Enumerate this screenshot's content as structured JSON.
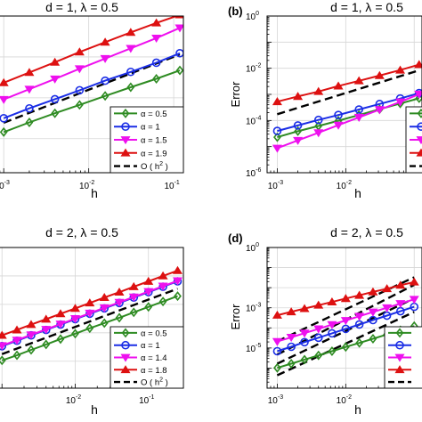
{
  "chart_data": [
    {
      "panel_label": "",
      "type": "line",
      "title": "d = 1, λ = 0.5",
      "xlabel": "h",
      "ylabel": "",
      "xscale": "log",
      "yscale": "log",
      "xlim": [
        0.00071,
        0.13
      ],
      "ylim": [
        1.47e-06,
        0.01
      ],
      "xticks": [
        {
          "value": 0.001,
          "base": "10",
          "exp": "-3"
        },
        {
          "value": 0.01,
          "base": "10",
          "exp": "-2"
        },
        {
          "value": 0.1,
          "base": "10",
          "exp": "-1"
        }
      ],
      "yticks": [],
      "grid": true,
      "legend_position": "bottom-right",
      "series": [
        {
          "name": "α = 0.5",
          "color": "#2e8b22",
          "marker": "diamond",
          "linestyle": "solid",
          "x": [
            0.001,
            0.002,
            0.004,
            0.0078,
            0.0156,
            0.0312,
            0.0625,
            0.118
          ],
          "y": [
            1.45e-05,
            2.5e-05,
            4.18e-05,
            6.7e-05,
            0.000111,
            0.000181,
            0.000291,
            0.000468
          ]
        },
        {
          "name": "α = 1",
          "color": "#1b2ee6",
          "marker": "circle",
          "linestyle": "solid",
          "x": [
            0.001,
            0.002,
            0.004,
            0.0078,
            0.0156,
            0.0312,
            0.0625,
            0.118
          ],
          "y": [
            3.16e-05,
            5.51e-05,
            9.25e-05,
            0.000153,
            0.000262,
            0.00043,
            0.000721,
            0.00123
          ]
        },
        {
          "name": "α = 1.5",
          "color": "#ee10ee",
          "marker": "triangle-down",
          "linestyle": "solid",
          "x": [
            0.001,
            0.002,
            0.004,
            0.0078,
            0.0156,
            0.0312,
            0.0625,
            0.118
          ],
          "y": [
            9.12e-05,
            0.000162,
            0.000288,
            0.000513,
            0.000912,
            0.00162,
            0.00288,
            0.00513
          ]
        },
        {
          "name": "α = 1.9",
          "color": "#dd1111",
          "marker": "triangle-up",
          "linestyle": "solid",
          "x": [
            0.001,
            0.002,
            0.004,
            0.0078,
            0.0156,
            0.0312,
            0.0625,
            0.118
          ],
          "y": [
            0.000234,
            0.000417,
            0.000741,
            0.00132,
            0.00229,
            0.00398,
            0.00676,
            0.0107
          ]
        },
        {
          "name": "O ( h",
          "name_sup": "2",
          "name_suffix": " )",
          "color": "#000000",
          "marker": "none",
          "linestyle": "dashed",
          "x": [
            0.001,
            0.118
          ],
          "y": [
            2.45e-05,
            0.00115
          ]
        }
      ]
    },
    {
      "panel_label": "(b)",
      "type": "line",
      "title": "d = 1, λ = 0.5",
      "xlabel": "h",
      "ylabel": "Error",
      "xscale": "log",
      "yscale": "log",
      "xlim": [
        0.00071,
        0.13
      ],
      "ylim": [
        1e-06,
        1
      ],
      "xticks": [
        {
          "value": 0.001,
          "base": "10",
          "exp": "-3"
        },
        {
          "value": 0.01,
          "base": "10",
          "exp": "-2"
        }
      ],
      "yticks": [
        {
          "value": 1,
          "base": "10",
          "exp": "0"
        },
        {
          "value": 0.01,
          "base": "10",
          "exp": "-2"
        },
        {
          "value": 0.0001,
          "base": "10",
          "exp": "-4"
        },
        {
          "value": 1e-06,
          "base": "10",
          "exp": "-6"
        }
      ],
      "grid": true,
      "legend_position": "bottom-right",
      "series": [
        {
          "name": "",
          "color": "#2e8b22",
          "marker": "diamond",
          "linestyle": "solid",
          "x": [
            0.001,
            0.002,
            0.004,
            0.0078,
            0.0156,
            0.0312,
            0.0625,
            0.118
          ],
          "y": [
            2.29e-05,
            3.89e-05,
            6.17e-05,
            9.77e-05,
            0.000162,
            0.000269,
            0.000447,
            0.000708
          ]
        },
        {
          "name": "",
          "color": "#1b2ee6",
          "marker": "circle",
          "linestyle": "solid",
          "x": [
            0.001,
            0.002,
            0.004,
            0.0078,
            0.0156,
            0.0312,
            0.0625,
            0.118
          ],
          "y": [
            3.98e-05,
            6.46e-05,
            0.000105,
            0.000162,
            0.000263,
            0.000427,
            0.000692,
            0.00112
          ]
        },
        {
          "name": "",
          "color": "#ee10ee",
          "marker": "triangle-down",
          "linestyle": "solid",
          "x": [
            0.001,
            0.002,
            0.004,
            0.0078,
            0.0156,
            0.0312,
            0.0625,
            0.118
          ],
          "y": [
            8.7e-06,
            1.73e-05,
            3.39e-05,
            6.61e-05,
            0.000132,
            0.00026,
            0.000513,
            0.00102
          ]
        },
        {
          "name": "",
          "color": "#dd1111",
          "marker": "triangle-up",
          "linestyle": "solid",
          "x": [
            0.001,
            0.002,
            0.004,
            0.0078,
            0.0156,
            0.0312,
            0.0625,
            0.118
          ],
          "y": [
            0.000525,
            0.000832,
            0.00129,
            0.00209,
            0.00331,
            0.00525,
            0.00851,
            0.0138
          ]
        },
        {
          "name": "",
          "color": "#000000",
          "marker": "none",
          "linestyle": "dashed",
          "x": [
            0.001,
            0.118
          ],
          "y": [
            0.000174,
            0.00832
          ]
        }
      ]
    },
    {
      "panel_label": "",
      "type": "line",
      "title": "d = 2, λ = 0.5",
      "xlabel": "h",
      "ylabel": "",
      "xscale": "log",
      "yscale": "log",
      "xlim": [
        0.00071,
        0.3
      ],
      "ylim": [
        1.13e-08,
        0.001
      ],
      "xticks": [
        {
          "value": 0.01,
          "base": "10",
          "exp": "-2"
        },
        {
          "value": 0.1,
          "base": "10",
          "exp": "-1"
        }
      ],
      "yticks": [],
      "grid": true,
      "legend_position": "bottom-right",
      "series": [
        {
          "name": "α = 0.5",
          "color": "#2e8b22",
          "marker": "diamond",
          "linestyle": "solid",
          "x": [
            0.001,
            0.0016,
            0.0025,
            0.004,
            0.0063,
            0.01,
            0.0158,
            0.025,
            0.04,
            0.063,
            0.1,
            0.158,
            0.25
          ],
          "y": [
            1.07e-07,
            1.62e-07,
            2.51e-07,
            3.89e-07,
            6.03e-07,
            9.33e-07,
            1.45e-06,
            2.19e-06,
            3.39e-06,
            5.25e-06,
            8.13e-06,
            1.26e-05,
            1.95e-05
          ]
        },
        {
          "name": "α = 1",
          "color": "#1b2ee6",
          "marker": "circle",
          "linestyle": "solid",
          "x": [
            0.001,
            0.0016,
            0.0025,
            0.004,
            0.0063,
            0.01,
            0.0158,
            0.025,
            0.04,
            0.063,
            0.1,
            0.158,
            0.25
          ],
          "y": [
            3.39e-07,
            5.25e-07,
            8.13e-07,
            1.26e-06,
            1.95e-06,
            3.02e-06,
            4.68e-06,
            7.24e-06,
            1.12e-05,
            1.74e-05,
            2.69e-05,
            4.17e-05,
            6.46e-05
          ]
        },
        {
          "name": "α = 1.4",
          "color": "#ee10ee",
          "marker": "triangle-down",
          "linestyle": "solid",
          "x": [
            0.001,
            0.0016,
            0.0025,
            0.004,
            0.0063,
            0.01,
            0.0158,
            0.025,
            0.04,
            0.063,
            0.1,
            0.158,
            0.25
          ],
          "y": [
            3.55e-07,
            5.5e-07,
            8.51e-07,
            1.32e-06,
            2.04e-06,
            3.16e-06,
            4.9e-06,
            7.59e-06,
            1.18e-05,
            1.82e-05,
            2.82e-05,
            4.37e-05,
            6.76e-05
          ]
        },
        {
          "name": "α = 1.8",
          "color": "#dd1111",
          "marker": "triangle-up",
          "linestyle": "solid",
          "x": [
            0.001,
            0.0016,
            0.0025,
            0.004,
            0.0063,
            0.01,
            0.0158,
            0.025,
            0.04,
            0.063,
            0.1,
            0.158,
            0.25
          ],
          "y": [
            8.13e-07,
            1.26e-06,
            1.95e-06,
            3.02e-06,
            4.68e-06,
            7.24e-06,
            1.12e-05,
            1.74e-05,
            2.69e-05,
            4.17e-05,
            6.46e-05,
            0.0001,
            0.000155
          ]
        },
        {
          "name": "O ( h",
          "name_sup": "2",
          "name_suffix": " )",
          "color": "#000000",
          "marker": "none",
          "linestyle": "dashed",
          "x": [
            0.001,
            0.25
          ],
          "y": [
            1.78e-07,
            3.55e-05
          ]
        }
      ]
    },
    {
      "panel_label": "(d)",
      "type": "line",
      "title": "d = 2, λ = 0.5",
      "xlabel": "h",
      "ylabel": "Error",
      "xscale": "log",
      "yscale": "log",
      "xlim": [
        0.00071,
        0.13
      ],
      "ylim": [
        1e-07,
        1
      ],
      "xticks": [
        {
          "value": 0.001,
          "base": "10",
          "exp": "-3"
        },
        {
          "value": 0.01,
          "base": "10",
          "exp": "-2"
        }
      ],
      "yticks": [
        {
          "value": 1,
          "base": "10",
          "exp": "0"
        },
        {
          "value": 0.001,
          "base": "10",
          "exp": "-3"
        },
        {
          "value": 1e-05,
          "base": "10",
          "exp": "-5"
        }
      ],
      "grid": true,
      "legend_position": "bottom-right",
      "series": [
        {
          "name": "",
          "color": "#2e8b22",
          "marker": "diamond",
          "linestyle": "solid",
          "x": [
            0.001,
            0.0016,
            0.0025,
            0.004,
            0.0063,
            0.01,
            0.0158,
            0.025,
            0.04,
            0.063,
            0.1
          ],
          "y": [
            1.02e-06,
            1.66e-06,
            2.63e-06,
            4.27e-06,
            6.9e-06,
            1.12e-05,
            1.78e-05,
            2.88e-05,
            4.68e-05,
            7.59e-05,
            0.000123
          ]
        },
        {
          "name": "",
          "color": "#1b2ee6",
          "marker": "circle",
          "linestyle": "solid",
          "x": [
            0.001,
            0.0016,
            0.0025,
            0.004,
            0.0063,
            0.01,
            0.0158,
            0.025,
            0.04,
            0.063,
            0.1
          ],
          "y": [
            6.9e-06,
            1.15e-05,
            1.95e-05,
            3.24e-05,
            5.37e-05,
            8.91e-05,
            0.000148,
            0.000245,
            0.000407,
            0.000676,
            0.00112
          ]
        },
        {
          "name": "",
          "color": "#ee10ee",
          "marker": "triangle-down",
          "linestyle": "solid",
          "x": [
            0.001,
            0.0016,
            0.0025,
            0.004,
            0.0063,
            0.01,
            0.0158,
            0.025,
            0.04,
            0.063,
            0.1
          ],
          "y": [
            2.09e-05,
            3.39e-05,
            5.49e-05,
            8.91e-05,
            0.000145,
            0.000234,
            0.00038,
            0.000617,
            0.001,
            0.00162,
            0.00263
          ]
        },
        {
          "name": "",
          "color": "#dd1111",
          "marker": "triangle-up",
          "linestyle": "solid",
          "x": [
            0.001,
            0.0016,
            0.0025,
            0.004,
            0.0063,
            0.01,
            0.0158,
            0.025,
            0.04,
            0.063,
            0.1
          ],
          "y": [
            0.000427,
            0.000631,
            0.000912,
            0.00135,
            0.00195,
            0.00288,
            0.00417,
            0.00617,
            0.00891,
            0.0132,
            0.0191
          ]
        },
        {
          "name": "",
          "color": "#000000",
          "marker": "none",
          "linestyle": "dashed",
          "x": [
            0.001,
            0.1
          ],
          "y": [
            2.14e-05,
            0.0331
          ]
        },
        {
          "name": "",
          "color": "#000000",
          "marker": "none",
          "linestyle": "dashed",
          "x": [
            0.001,
            0.1
          ],
          "y": [
            4.68e-06,
            0.0138
          ]
        },
        {
          "name": "",
          "color": "#000000",
          "marker": "none",
          "linestyle": "dashed",
          "x": [
            0.001,
            0.1
          ],
          "y": [
            1.66e-06,
            0.00295
          ]
        },
        {
          "name": "",
          "color": "#000000",
          "marker": "none",
          "linestyle": "dashed",
          "x": [
            0.001,
            0.1
          ],
          "y": [
            4.37e-07,
            0.000617
          ]
        }
      ]
    }
  ]
}
